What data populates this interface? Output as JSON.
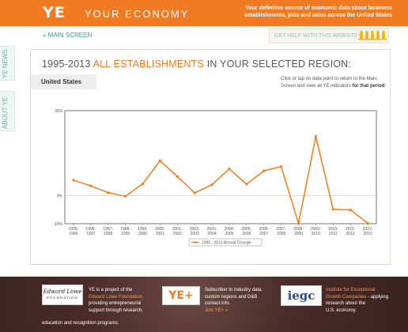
{
  "header": {
    "logo": "YE",
    "brand": "YOUR ECONOMY",
    "tagline": "Your definitive source of economic data about business establishments, jobs  and sales across the United States"
  },
  "sidebar": {
    "tabs": [
      {
        "label": "YE NEWS"
      },
      {
        "label": "ABOUT YE"
      }
    ]
  },
  "nav": {
    "main_screen": "« MAIN SCREEN",
    "help": "GET HELP WITH THIS WEBSITE"
  },
  "page": {
    "title_prefix": "1995-2013 ",
    "title_highlight": "ALL ESTABLISHMENTS",
    "title_suffix": " IN YOUR SELECTED REGION:",
    "region": "United States",
    "instructions_text": "Click or tap on data point to return to the Main Screen and view all YE indicators ",
    "instructions_bold": "for that period",
    "instructions_end": "."
  },
  "colors": {
    "accent": "#f07b22",
    "teal": "#2aa59a",
    "footer": "#4a2c2a"
  },
  "chart_data": {
    "type": "line",
    "title": "",
    "xlabel": "",
    "ylabel": "",
    "ylim": [
      -10,
      30
    ],
    "y_ticks": [
      "30%",
      "0%",
      "-10%"
    ],
    "y_tick_values": [
      30,
      0,
      -10
    ],
    "categories": [
      "1995-1996",
      "1996-1997",
      "1997-1998",
      "1998-1999",
      "1999-2000",
      "2000-2001",
      "2001-2002",
      "2002-2003",
      "2003-2004",
      "2004-2005",
      "2005-2006",
      "2006-2007",
      "2007-2008",
      "2008-2009",
      "2009-2010",
      "2010-2011",
      "2011-2012",
      "2012-2013"
    ],
    "series": [
      {
        "name": "1995 - 2013 Annual Change",
        "color": "#f07b22",
        "values": [
          5.4,
          3.4,
          1.0,
          -0.3,
          4.1,
          12.3,
          6.7,
          0.9,
          3.8,
          9.4,
          4.0,
          8.7,
          10.2,
          -9.9,
          20.9,
          -4.9,
          -5.1,
          -9.8
        ]
      }
    ],
    "grid": false,
    "legend": "bottom-center"
  },
  "footer": {
    "el_logo_name": "Edward Lowe",
    "el_logo_sub": "FOUNDATION",
    "ye_logo": "YE+",
    "iegc_logo": "iegc",
    "col1_a": "YE is a project of the ",
    "col1_link": "Edward Lowe Foundation",
    "col1_b": ", providing entrepreneurial support through research, education and recognition programs.",
    "col1_top": "YE is a project of the",
    "col1_l1": "Edward Lowe Foundation,",
    "col1_l2": "providing entrepreneurial",
    "col1_l3": "support through research,",
    "col1_l4": "education and recognition programs.",
    "col2_l1": "Subscriber to industry data,",
    "col2_l2": "custom regions and D&B",
    "col2_l3": "contact info.",
    "col2_link": "Join YE+ »",
    "col3_link1": "Institute for Exceptional",
    "col3_link2": "Growth Companies",
    "col3_l3": " - applying research about the",
    "col3_l4": "U.S. economy."
  }
}
